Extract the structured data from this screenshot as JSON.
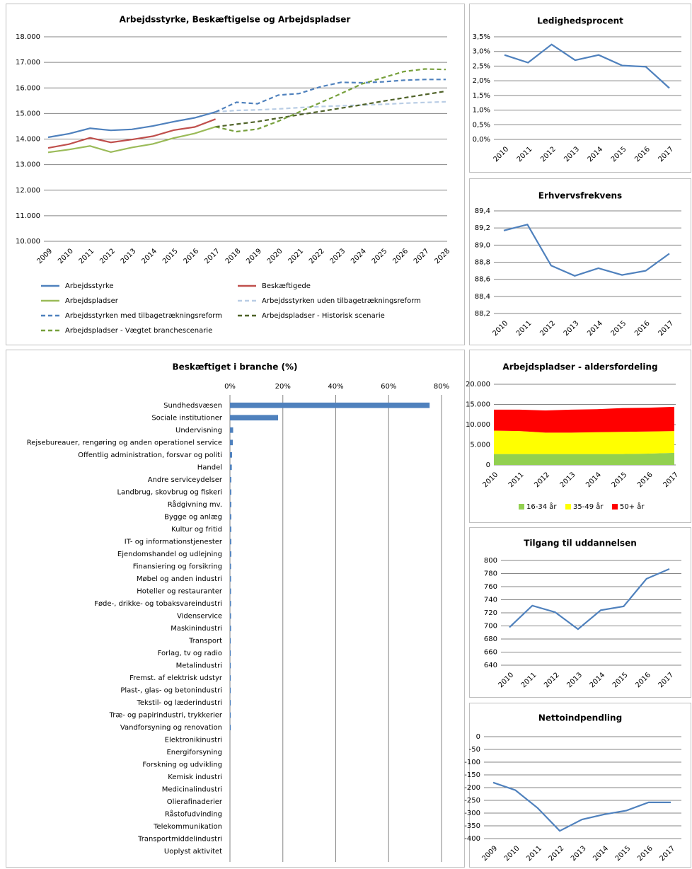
{
  "chart_data": [
    {
      "type": "line",
      "title": "Arbejdsstyrke, Beskæftigelse og Arbejdspladser",
      "categories": [
        "2009",
        "2010",
        "2011",
        "2012",
        "2013",
        "2014",
        "2015",
        "2016",
        "2017",
        "2018",
        "2019",
        "2020",
        "2021",
        "2022",
        "2023",
        "2024",
        "2025",
        "2026",
        "2027",
        "2028"
      ],
      "ylim": [
        10000,
        18000
      ],
      "yticks": [
        {
          "value": 10000,
          "label": "10.000"
        },
        {
          "value": 11000,
          "label": "11.000"
        },
        {
          "value": 12000,
          "label": "12.000"
        },
        {
          "value": 13000,
          "label": "13.000"
        },
        {
          "value": 14000,
          "label": "14.000"
        },
        {
          "value": 15000,
          "label": "15.000"
        },
        {
          "value": 16000,
          "label": "16.000"
        },
        {
          "value": 17000,
          "label": "17.000"
        },
        {
          "value": 18000,
          "label": "18.000"
        }
      ],
      "grid": true,
      "legend": "bottom",
      "series": [
        {
          "name": "Arbejdsstyrke",
          "color": "#4f81bd",
          "dashed": false,
          "values": [
            14070,
            14210,
            14420,
            14340,
            14380,
            14510,
            14680,
            14830,
            15060,
            null,
            null,
            null,
            null,
            null,
            null,
            null,
            null,
            null,
            null,
            null
          ]
        },
        {
          "name": "Beskæftigede",
          "color": "#c0504d",
          "dashed": false,
          "values": [
            13650,
            13800,
            14050,
            13870,
            13980,
            14110,
            14350,
            14470,
            14780,
            null,
            null,
            null,
            null,
            null,
            null,
            null,
            null,
            null,
            null,
            null
          ]
        },
        {
          "name": "Arbejdspladser",
          "color": "#9bbb59",
          "dashed": false,
          "values": [
            13480,
            13590,
            13730,
            13490,
            13670,
            13810,
            14040,
            14220,
            14480,
            null,
            null,
            null,
            null,
            null,
            null,
            null,
            null,
            null,
            null,
            null
          ]
        },
        {
          "name": "Arbejdsstyrken uden tilbagetrækningsreform",
          "color": "#b9cde5",
          "dashed": true,
          "values": [
            null,
            null,
            null,
            null,
            null,
            null,
            null,
            null,
            15060,
            15120,
            15140,
            15180,
            15230,
            15270,
            15300,
            15330,
            15360,
            15400,
            15430,
            15460
          ]
        },
        {
          "name": "Arbejdsstyrken med tilbagetrækningsreform",
          "color": "#4f81bd",
          "dashed": true,
          "values": [
            null,
            null,
            null,
            null,
            null,
            null,
            null,
            null,
            15060,
            15440,
            15380,
            15720,
            15780,
            16040,
            16220,
            16200,
            16240,
            16300,
            16330,
            16330
          ]
        },
        {
          "name": "Arbejdspladser - Historisk scenarie",
          "color": "#4f6228",
          "dashed": true,
          "values": [
            null,
            null,
            null,
            null,
            null,
            null,
            null,
            null,
            14480,
            14580,
            14680,
            14820,
            14950,
            15080,
            15210,
            15340,
            15480,
            15610,
            15740,
            15870
          ]
        },
        {
          "name": "Arbejdspladser - Vægtet branchescenarie",
          "color": "#77a03c",
          "dashed": true,
          "values": [
            null,
            null,
            null,
            null,
            null,
            null,
            null,
            null,
            14480,
            14290,
            14390,
            14700,
            15060,
            15420,
            15780,
            16160,
            16400,
            16640,
            16740,
            16720
          ]
        }
      ]
    },
    {
      "type": "line",
      "title": "Ledighedsprocent",
      "categories": [
        "2010",
        "2011",
        "2012",
        "2013",
        "2014",
        "2015",
        "2016",
        "2017"
      ],
      "ylim": [
        0,
        3.5
      ],
      "yticks": [
        {
          "value": 0,
          "label": "0,0%"
        },
        {
          "value": 0.5,
          "label": "0,5%"
        },
        {
          "value": 1,
          "label": "1,0%"
        },
        {
          "value": 1.5,
          "label": "1,5%"
        },
        {
          "value": 2,
          "label": "2,0%"
        },
        {
          "value": 2.5,
          "label": "2,5%"
        },
        {
          "value": 3,
          "label": "3,0%"
        },
        {
          "value": 3.5,
          "label": "3,5%"
        }
      ],
      "grid": true,
      "series": [
        {
          "color": "#4f81bd",
          "values": [
            2.88,
            2.62,
            3.24,
            2.7,
            2.88,
            2.52,
            2.48,
            1.75
          ]
        }
      ]
    },
    {
      "type": "line",
      "title": "Erhvervsfrekvens",
      "categories": [
        "2010",
        "2011",
        "2012",
        "2013",
        "2014",
        "2015",
        "2016",
        "2017"
      ],
      "ylim": [
        88.2,
        89.4
      ],
      "yticks": [
        {
          "value": 88.2,
          "label": "88,2"
        },
        {
          "value": 88.4,
          "label": "88,4"
        },
        {
          "value": 88.6,
          "label": "88,6"
        },
        {
          "value": 88.8,
          "label": "88,8"
        },
        {
          "value": 89,
          "label": "89,0"
        },
        {
          "value": 89.2,
          "label": "89,2"
        },
        {
          "value": 89.4,
          "label": "89,4"
        }
      ],
      "grid": true,
      "series": [
        {
          "color": "#4f81bd",
          "values": [
            89.17,
            89.24,
            88.76,
            88.64,
            88.73,
            88.65,
            88.7,
            88.9
          ]
        }
      ]
    },
    {
      "type": "hbar",
      "title": "Beskæftiget i branche (%)",
      "categories": [
        "Sundhedsvæsen",
        "Sociale institutioner",
        "Undervisning",
        "Rejsebureauer, rengøring og anden operationel service",
        "Offentlig administration, forsvar og politi",
        "Handel",
        "Andre serviceydelser",
        "Landbrug, skovbrug og fiskeri",
        "Rådgivning mv.",
        "Bygge og anlæg",
        "Kultur og fritid",
        "IT- og informationstjenester",
        "Ejendomshandel og udlejning",
        "Finansiering og forsikring",
        "Møbel og anden industri",
        "Hoteller og restauranter",
        "Føde-, drikke- og tobaksvareindustri",
        "Videnservice",
        "Maskinindustri",
        "Transport",
        "Forlag, tv og radio",
        "Metalindustri",
        "Fremst. af elektrisk udstyr",
        "Plast-, glas- og betonindustri",
        "Tekstil- og læderindustri",
        "Træ- og papirindustri, trykkerier",
        "Vandforsyning og renovation",
        "Elektronikinustri",
        "Energiforsyning",
        "Forskning og udvikling",
        "Kemisk industri",
        "Medicinalindustri",
        "Olierafinaderier",
        "Råstofudvinding",
        "Telekommunikation",
        "Transportmiddelindustri",
        "Uoplyst aktivitet"
      ],
      "values": [
        75.5,
        18.2,
        1.2,
        1.1,
        0.8,
        0.7,
        0.5,
        0.5,
        0.5,
        0.5,
        0.5,
        0.5,
        0.5,
        0.4,
        0.4,
        0.4,
        0.4,
        0.4,
        0.4,
        0.3,
        0.3,
        0.3,
        0.3,
        0.3,
        0.3,
        0.3,
        0.3,
        0,
        0,
        0,
        0,
        0,
        0,
        0,
        0,
        0,
        0
      ],
      "color": "#4f81bd",
      "xlim": [
        0,
        80
      ],
      "xticks": [
        {
          "value": 0,
          "label": "0%"
        },
        {
          "value": 20,
          "label": "20%"
        },
        {
          "value": 40,
          "label": "40%"
        },
        {
          "value": 60,
          "label": "60%"
        },
        {
          "value": 80,
          "label": "80%"
        }
      ],
      "grid": true
    },
    {
      "type": "area",
      "title": "Arbejdspladser - aldersfordeling",
      "categories": [
        "2010",
        "2011",
        "2012",
        "2013",
        "2014",
        "2015",
        "2016",
        "2017"
      ],
      "ylim": [
        0,
        20000
      ],
      "yticks": [
        0,
        {
          "value": 5000,
          "label": "5.000"
        },
        {
          "value": 10000,
          "label": "10.000"
        },
        {
          "value": 15000,
          "label": "15.000"
        },
        {
          "value": 20000,
          "label": "20.000"
        }
      ],
      "grid": true,
      "legend": "bottom",
      "series": [
        {
          "name": "16-34 år",
          "color": "#92d050",
          "values": [
            2700,
            2700,
            2700,
            2700,
            2700,
            2700,
            2800,
            3000
          ]
        },
        {
          "name": "35-49 år",
          "color": "#ffff00",
          "values": [
            5800,
            5700,
            5300,
            5300,
            5400,
            5500,
            5500,
            5400
          ]
        },
        {
          "name": "50+ år",
          "color": "#ff0000",
          "values": [
            5200,
            5300,
            5500,
            5700,
            5700,
            5900,
            5900,
            6000
          ]
        }
      ]
    },
    {
      "type": "line",
      "title": "Tilgang til uddannelsen",
      "categories": [
        "2010",
        "2011",
        "2012",
        "2013",
        "2014",
        "2015",
        "2016",
        "2017"
      ],
      "ylim": [
        640,
        800
      ],
      "yticks": [
        640,
        660,
        680,
        700,
        720,
        740,
        760,
        780,
        800
      ],
      "grid": true,
      "series": [
        {
          "color": "#4f81bd",
          "values": [
            698,
            731,
            721,
            695,
            724,
            730,
            772,
            787
          ]
        }
      ]
    },
    {
      "type": "line",
      "title": "Nettoindpendling",
      "categories": [
        "2009",
        "2010",
        "2011",
        "2012",
        "2013",
        "2014",
        "2015",
        "2016",
        "2017"
      ],
      "ylim": [
        -400,
        0
      ],
      "yticks": [
        -400,
        -350,
        -300,
        -250,
        -200,
        -150,
        -100,
        -50,
        0
      ],
      "grid": true,
      "series": [
        {
          "color": "#4f81bd",
          "values": [
            -180,
            -210,
            -280,
            -370,
            -325,
            -305,
            -290,
            -258,
            -258
          ]
        }
      ]
    }
  ]
}
